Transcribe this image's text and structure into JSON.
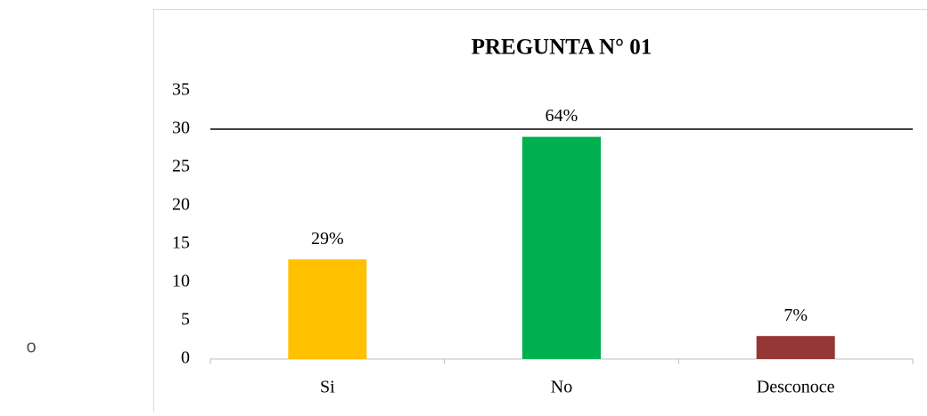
{
  "chart_data": {
    "type": "bar",
    "title": "PREGUNTA N° 01",
    "categories": [
      "Si",
      "No",
      "Desconoce"
    ],
    "values": [
      13,
      29,
      3
    ],
    "annotations": [
      "29%",
      "64%",
      "7%"
    ],
    "colors": [
      "#ffc000",
      "#00b050",
      "#953735"
    ],
    "ylim": [
      0,
      35
    ],
    "yticks": [
      0,
      5,
      10,
      15,
      20,
      25,
      30,
      35
    ],
    "reference_line": 30,
    "grid": false,
    "side_text": "o"
  }
}
